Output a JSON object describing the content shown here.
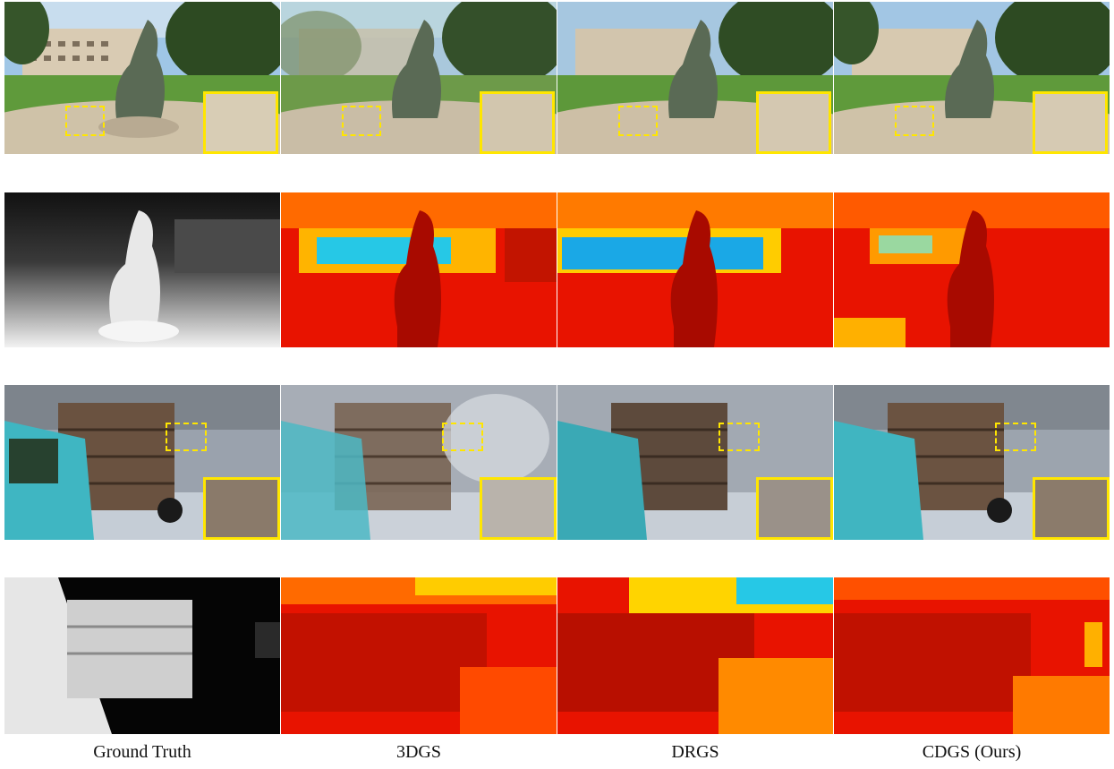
{
  "figure": {
    "columns": [
      {
        "label": "Ground Truth"
      },
      {
        "label": "3DGS"
      },
      {
        "label": "DRGS"
      },
      {
        "label": "CDGS (Ours)"
      }
    ],
    "rows": [
      {
        "scene": "statue",
        "kind": "rgb",
        "zoom_inset": true
      },
      {
        "scene": "statue",
        "kind": "depth"
      },
      {
        "scene": "truck",
        "kind": "rgb",
        "zoom_inset": true
      },
      {
        "scene": "truck",
        "kind": "depth"
      }
    ],
    "colors": {
      "inset_border": "#ffe600",
      "depth_hot": "#e81300",
      "depth_warm": "#ff8a00",
      "depth_cool": "#26c8e6"
    }
  }
}
